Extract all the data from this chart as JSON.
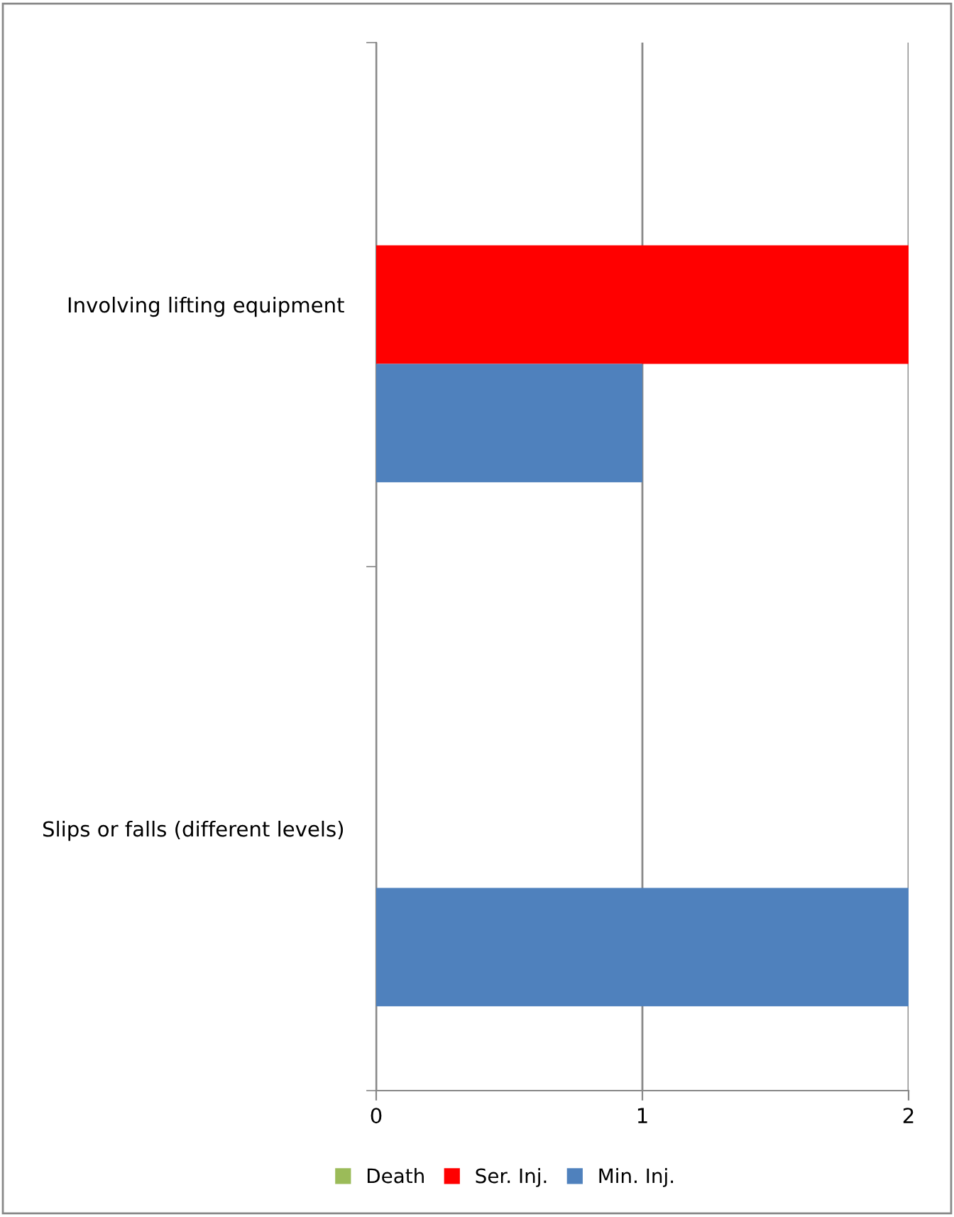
{
  "chart_data": {
    "type": "bar",
    "orientation": "horizontal",
    "categories": [
      "Involving lifting equipment",
      "Slips or falls (different levels)"
    ],
    "series": [
      {
        "name": "Death",
        "color": "#9bbb59",
        "values": [
          0,
          0
        ]
      },
      {
        "name": "Ser. Inj.",
        "color": "#ff0000",
        "values": [
          2,
          0
        ]
      },
      {
        "name": "Min. Inj.",
        "color": "#4f81bd",
        "values": [
          1,
          2
        ]
      }
    ],
    "xlim": [
      0,
      2
    ],
    "xticks": [
      0,
      1,
      2
    ],
    "grid": "x",
    "legend": "bottom"
  }
}
